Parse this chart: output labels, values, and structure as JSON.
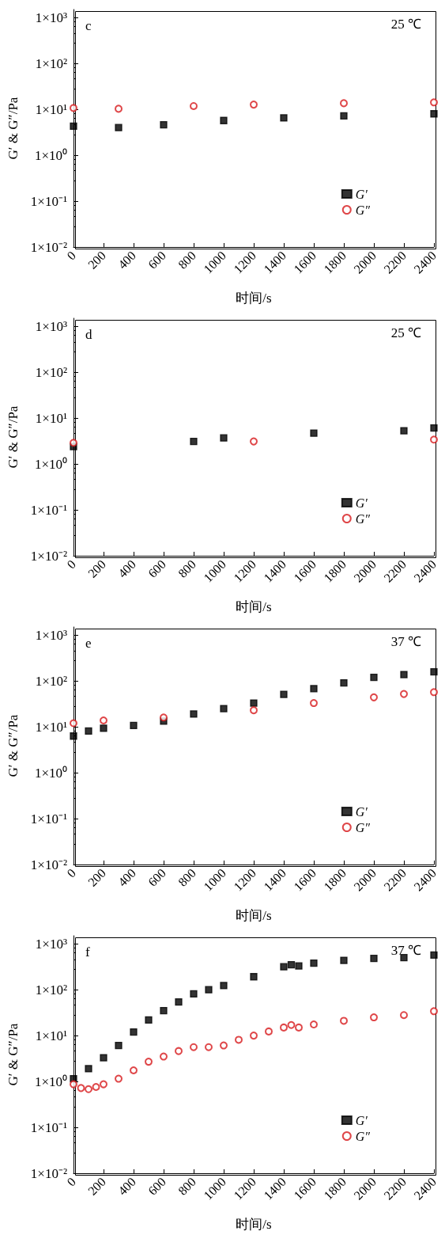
{
  "chart_data": [
    {
      "type": "scatter",
      "annotations": [
        "c",
        "25 ℃"
      ],
      "xlabel": "时间/s",
      "ylabel": "G′ & G″/Pa",
      "log": "y",
      "legend": "bottom right",
      "xlim": [
        0,
        2400
      ],
      "xticks": [
        0,
        200,
        400,
        600,
        800,
        1000,
        1200,
        1400,
        1600,
        1800,
        2000,
        2200,
        2400
      ],
      "ylim": [
        0.01,
        1500
      ],
      "yticks": [
        {
          "value": 0.01,
          "label": "1×10⁻²"
        },
        {
          "value": 0.1,
          "label": "1×10⁻¹"
        },
        {
          "value": 1,
          "label": "1×10⁰"
        },
        {
          "value": 10,
          "label": "1×10¹"
        },
        {
          "value": 100,
          "label": "1×10²"
        },
        {
          "value": 1000,
          "label": "1×10³"
        }
      ],
      "series": [
        {
          "name": "G′",
          "color": "#000000",
          "marker": "square",
          "x": [
            0,
            300,
            600,
            1000,
            1400,
            1800,
            2400
          ],
          "values": [
            4.3,
            4.0,
            4.6,
            5.7,
            6.5,
            7.2,
            8.0
          ]
        },
        {
          "name": "G″",
          "color": "#d7191c",
          "marker": "circle",
          "x": [
            0,
            300,
            800,
            1200,
            1800,
            2400
          ],
          "values": [
            10.7,
            10.3,
            11.8,
            12.7,
            13.6,
            14.2
          ]
        }
      ]
    },
    {
      "type": "scatter",
      "annotations": [
        "d",
        "25 ℃"
      ],
      "xlabel": "时间/s",
      "ylabel": "G′ & G″/Pa",
      "log": "y",
      "legend": "bottom right",
      "xlim": [
        0,
        2400
      ],
      "xticks": [
        0,
        200,
        400,
        600,
        800,
        1000,
        1200,
        1400,
        1600,
        1800,
        2000,
        2200,
        2400
      ],
      "ylim": [
        0.01,
        1500
      ],
      "yticks": [
        {
          "value": 0.01,
          "label": "1×10⁻²"
        },
        {
          "value": 0.1,
          "label": "1×10⁻¹"
        },
        {
          "value": 1,
          "label": "1×10⁰"
        },
        {
          "value": 10,
          "label": "1×10¹"
        },
        {
          "value": 100,
          "label": "1×10²"
        },
        {
          "value": 1000,
          "label": "1×10³"
        }
      ],
      "series": [
        {
          "name": "G′",
          "color": "#000000",
          "marker": "square",
          "x": [
            0,
            800,
            1000,
            1600,
            2200,
            2400
          ],
          "values": [
            2.4,
            3.1,
            3.7,
            4.7,
            5.3,
            6.1
          ]
        },
        {
          "name": "G″",
          "color": "#d7191c",
          "marker": "circle",
          "x": [
            0,
            1200,
            2400
          ],
          "values": [
            2.9,
            3.1,
            3.4
          ]
        }
      ]
    },
    {
      "type": "scatter",
      "annotations": [
        "e",
        "37 ℃"
      ],
      "xlabel": "时间/s",
      "ylabel": "G′ & G″/Pa",
      "log": "y",
      "legend": "bottom right",
      "xlim": [
        0,
        2400
      ],
      "xticks": [
        0,
        200,
        400,
        600,
        800,
        1000,
        1200,
        1400,
        1600,
        1800,
        2000,
        2200,
        2400
      ],
      "ylim": [
        0.01,
        1500
      ],
      "yticks": [
        {
          "value": 0.01,
          "label": "1×10⁻²"
        },
        {
          "value": 0.1,
          "label": "1×10⁻¹"
        },
        {
          "value": 1,
          "label": "1×10⁰"
        },
        {
          "value": 10,
          "label": "1×10¹"
        },
        {
          "value": 100,
          "label": "1×10²"
        },
        {
          "value": 1000,
          "label": "1×10³"
        }
      ],
      "series": [
        {
          "name": "G′",
          "color": "#000000",
          "marker": "square",
          "x": [
            0,
            100,
            200,
            400,
            600,
            800,
            1000,
            1200,
            1400,
            1600,
            1800,
            2000,
            2200,
            2400
          ],
          "values": [
            6.3,
            8.1,
            9.3,
            10.7,
            13.3,
            19,
            25,
            33,
            51,
            68,
            91,
            120,
            138,
            158
          ]
        },
        {
          "name": "G″",
          "color": "#d7191c",
          "marker": "circle",
          "x": [
            0,
            200,
            600,
            1200,
            1600,
            2000,
            2200,
            2400
          ],
          "values": [
            12,
            13.8,
            16,
            23,
            33,
            44,
            52,
            57
          ]
        }
      ]
    },
    {
      "type": "scatter",
      "annotations": [
        "f",
        "37 ℃"
      ],
      "xlabel": "时间/s",
      "ylabel": "G′ & G″/Pa",
      "log": "y",
      "legend": "bottom right",
      "xlim": [
        0,
        2400
      ],
      "xticks": [
        0,
        200,
        400,
        600,
        800,
        1000,
        1200,
        1400,
        1600,
        1800,
        2000,
        2200,
        2400
      ],
      "ylim": [
        0.01,
        1500
      ],
      "yticks": [
        {
          "value": 0.01,
          "label": "1×10⁻²"
        },
        {
          "value": 0.1,
          "label": "1×10⁻¹"
        },
        {
          "value": 1,
          "label": "1×10⁰"
        },
        {
          "value": 10,
          "label": "1×10¹"
        },
        {
          "value": 100,
          "label": "1×10²"
        },
        {
          "value": 1000,
          "label": "1×10³"
        }
      ],
      "series": [
        {
          "name": "G′",
          "color": "#000000",
          "marker": "square",
          "x": [
            0,
            100,
            200,
            300,
            400,
            500,
            600,
            700,
            800,
            900,
            1000,
            1200,
            1400,
            1450,
            1500,
            1600,
            1800,
            2000,
            2200,
            2400
          ],
          "values": [
            1.15,
            1.9,
            3.3,
            6.1,
            12,
            22,
            35,
            54,
            81,
            100,
            123,
            192,
            316,
            350,
            330,
            380,
            436,
            480,
            500,
            570
          ]
        },
        {
          "name": "G″",
          "color": "#d7191c",
          "marker": "circle",
          "x": [
            0,
            50,
            100,
            150,
            200,
            300,
            400,
            500,
            600,
            700,
            800,
            900,
            1000,
            1100,
            1200,
            1300,
            1400,
            1450,
            1500,
            1600,
            1800,
            2000,
            2200,
            2400
          ],
          "values": [
            0.87,
            0.72,
            0.68,
            0.76,
            0.87,
            1.15,
            1.75,
            2.7,
            3.5,
            4.6,
            5.6,
            5.6,
            6.1,
            8.1,
            10,
            12.3,
            15,
            17,
            15,
            17.5,
            21,
            25,
            28,
            34
          ]
        }
      ]
    }
  ]
}
